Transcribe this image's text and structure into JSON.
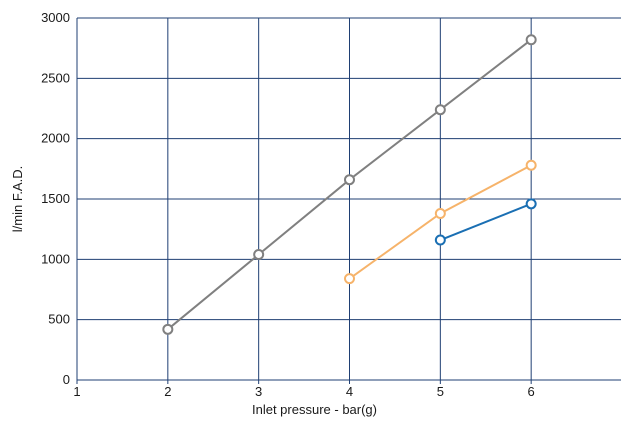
{
  "chart_data": {
    "type": "line",
    "xlabel": "Inlet pressure - bar(g)",
    "ylabel": "l/min F.A.D.",
    "xlim": [
      1,
      7
    ],
    "ylim": [
      0,
      3000
    ],
    "xticks": [
      1,
      2,
      3,
      4,
      5,
      6
    ],
    "yticks": [
      0,
      500,
      1000,
      1500,
      2000,
      2500,
      3000
    ],
    "grid": true,
    "grid_color": "#1f3f73",
    "series": [
      {
        "color": "#808080",
        "x": [
          2,
          3,
          4,
          5,
          6
        ],
        "y": [
          420,
          1040,
          1660,
          2240,
          2820
        ]
      },
      {
        "color": "#f6b36a",
        "x": [
          4,
          5,
          6
        ],
        "y": [
          840,
          1380,
          1780
        ]
      },
      {
        "color": "#1a6fb3",
        "x": [
          5,
          6
        ],
        "y": [
          1160,
          1460
        ]
      }
    ]
  }
}
